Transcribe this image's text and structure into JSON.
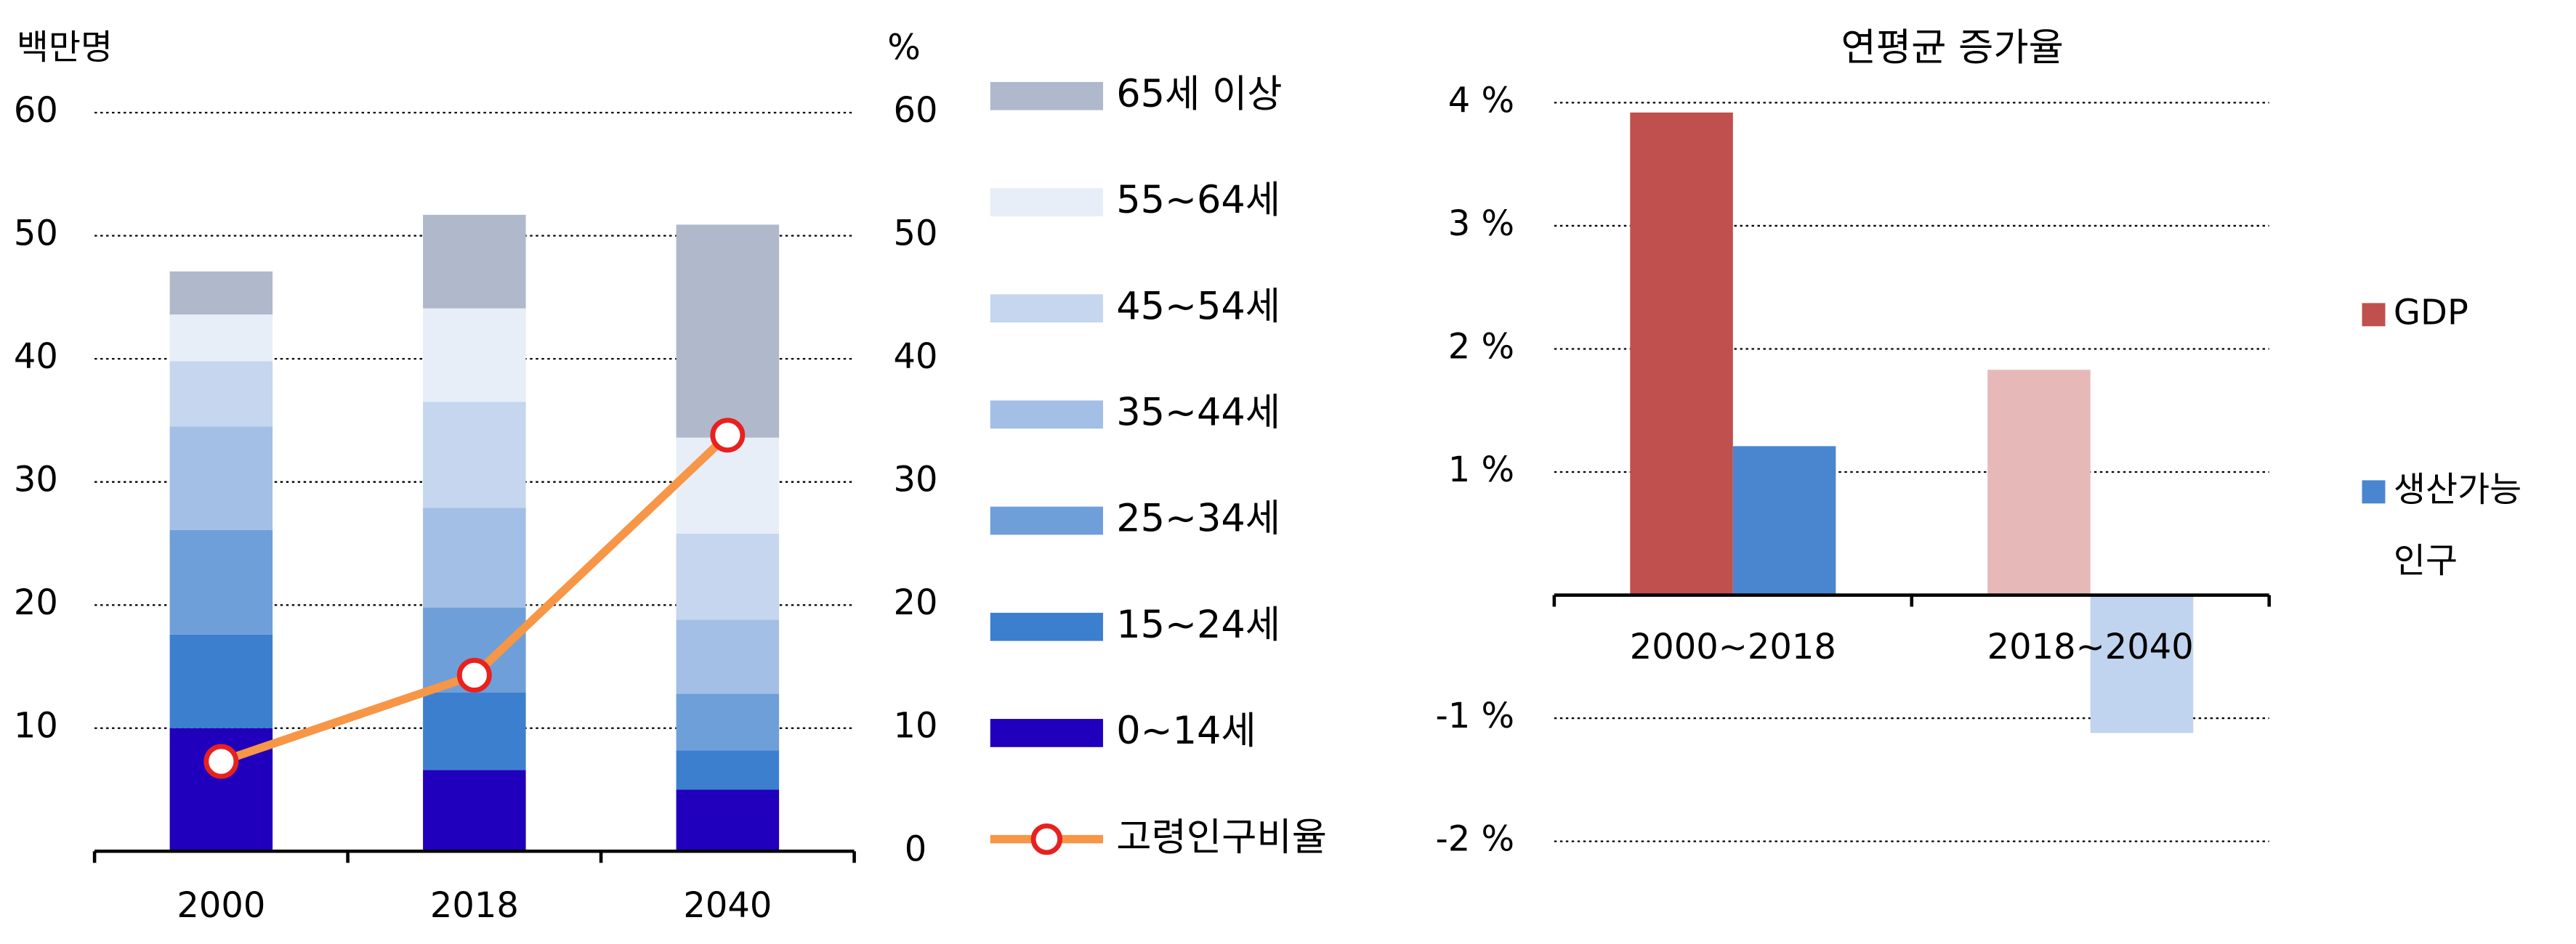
{
  "chart_data": [
    {
      "type": "stacked-bar",
      "ylabel": "백만명",
      "y2label": "%",
      "categories": [
        "2000",
        "2018",
        "2040"
      ],
      "ylim": [
        0,
        60
      ],
      "yticks": [
        10,
        20,
        30,
        40,
        50,
        60
      ],
      "y2lim": [
        0,
        60
      ],
      "y2ticks": [
        0,
        10,
        20,
        30,
        40,
        50,
        60
      ],
      "grid": true,
      "series": [
        {
          "name": "0~14세",
          "color": "#2000bc",
          "values": [
            10.0,
            6.6,
            5.0
          ]
        },
        {
          "name": "15~24세",
          "color": "#3d7fcf",
          "values": [
            7.6,
            6.3,
            3.2
          ]
        },
        {
          "name": "25~34세",
          "color": "#6f9fd9",
          "values": [
            8.5,
            6.9,
            4.6
          ]
        },
        {
          "name": "35~44세",
          "color": "#a3bfe6",
          "values": [
            8.4,
            8.1,
            6.0
          ]
        },
        {
          "name": "45~54세",
          "color": "#c5d6ee",
          "values": [
            5.3,
            8.6,
            7.0
          ]
        },
        {
          "name": "55~64세",
          "color": "#e8eef8",
          "values": [
            3.8,
            7.6,
            7.8
          ]
        },
        {
          "name": "65세 이상",
          "color": "#b0b8cc",
          "values": [
            3.5,
            7.6,
            17.3
          ]
        },
        {
          "name": "고령인구비율",
          "type": "line",
          "axis": "y2",
          "color": "#f79646",
          "marker_color": "#e8211f",
          "values": [
            7.3,
            14.3,
            33.8
          ]
        }
      ]
    },
    {
      "type": "bar",
      "title": "연평균 증가율",
      "categories": [
        "2000~2018",
        "2018~2040"
      ],
      "ylim": [
        -2,
        4
      ],
      "yticks": [
        {
          "value": 4,
          "label": "4 %"
        },
        {
          "value": 3,
          "label": "3 %"
        },
        {
          "value": 2,
          "label": "2 %"
        },
        {
          "value": 1,
          "label": "1 %"
        },
        {
          "value": -1,
          "label": "-1 %"
        },
        {
          "value": -2,
          "label": "-2 %"
        }
      ],
      "grid": true,
      "series": [
        {
          "name": "GDP",
          "color": "#c0504d",
          "colors": [
            "#c0504d",
            "#e6b9b8"
          ],
          "values": [
            3.92,
            1.83
          ]
        },
        {
          "name": "생산가능인구",
          "color": "#4a86d0",
          "colors": [
            "#4a86d0",
            "#c0d4ef"
          ],
          "values": [
            1.21,
            -1.12
          ]
        }
      ]
    }
  ]
}
